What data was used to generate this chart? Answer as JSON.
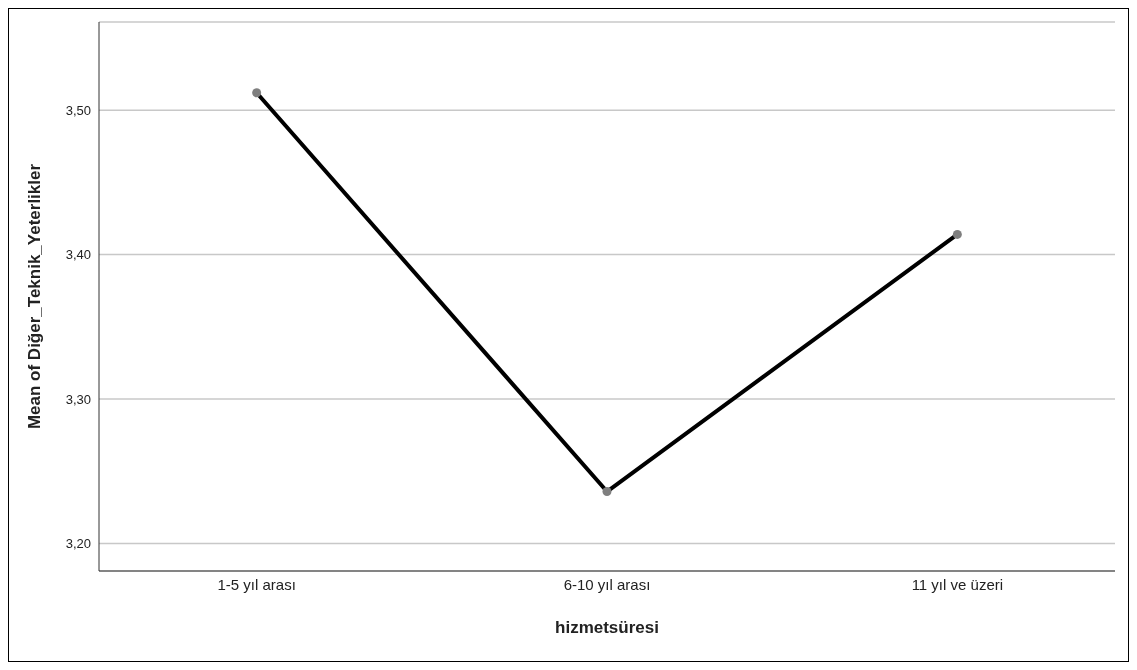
{
  "chart_data": {
    "type": "line",
    "xlabel": "hizmetsüresi",
    "ylabel": "Mean of Diğer_Teknik_Yeterlikler",
    "categories": [
      "1-5 yıl arası",
      "6-10 yıl arası",
      "11 yıl ve üzeri"
    ],
    "series": [
      {
        "color": "#000000",
        "values": [
          3.512,
          3.236,
          3.414
        ]
      }
    ],
    "ylim": [
      3.181,
      3.561
    ],
    "yticks": [
      {
        "value": 3.2,
        "label": "3,20"
      },
      {
        "value": 3.3,
        "label": "3,30"
      },
      {
        "value": 3.4,
        "label": "3,40"
      },
      {
        "value": 3.5,
        "label": "3,50"
      }
    ],
    "grid": "y",
    "marker": "circle",
    "line_style": "solid",
    "legend": false
  }
}
